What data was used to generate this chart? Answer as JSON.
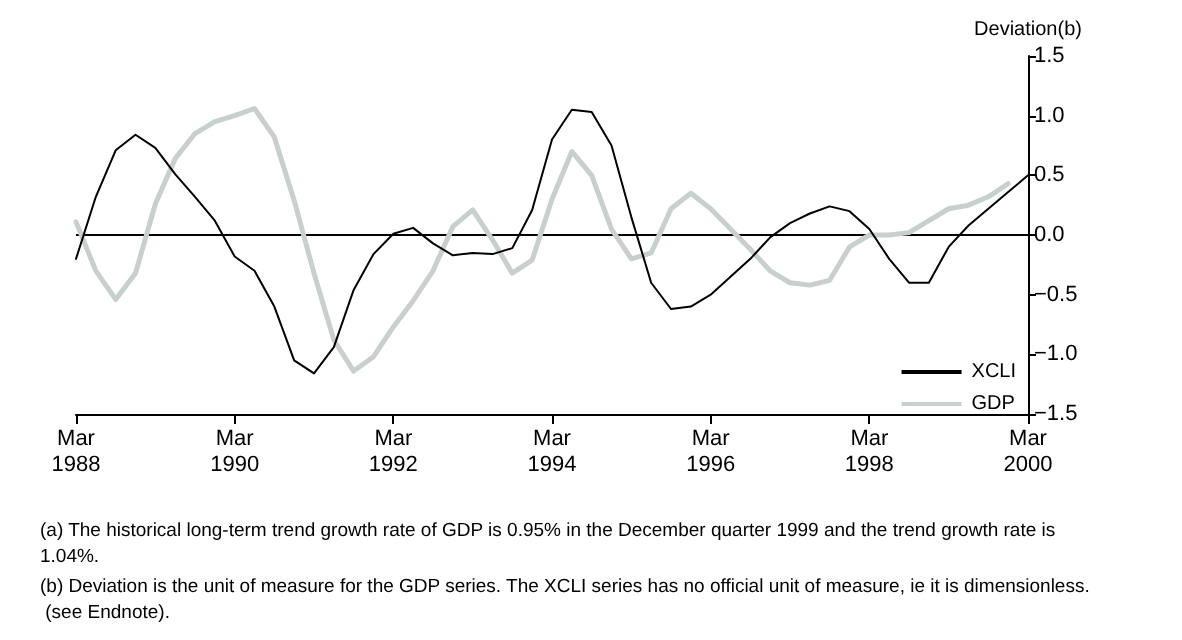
{
  "chart_data": {
    "type": "line",
    "ylabel": "Deviation(b)",
    "categories": [
      "Mar\n1988",
      null,
      null,
      null,
      null,
      null,
      null,
      null,
      "Mar\n1990",
      null,
      null,
      null,
      null,
      null,
      null,
      null,
      "Mar\n1992",
      null,
      null,
      null,
      null,
      null,
      null,
      null,
      "Mar\n1994",
      null,
      null,
      null,
      null,
      null,
      null,
      null,
      "Mar\n1996",
      null,
      null,
      null,
      null,
      null,
      null,
      null,
      "Mar\n1998",
      null,
      null,
      null,
      null,
      null,
      null,
      null,
      "Mar\n2000"
    ],
    "series": [
      {
        "name": "XCLI",
        "color": "#000000",
        "values": [
          -0.2,
          0.32,
          0.71,
          0.84,
          0.73,
          0.51,
          0.32,
          0.12,
          -0.18,
          -0.3,
          -0.6,
          -1.05,
          -1.16,
          -0.94,
          -0.46,
          -0.16,
          0.01,
          0.06,
          -0.07,
          -0.17,
          -0.15,
          -0.16,
          -0.11,
          0.21,
          0.8,
          1.05,
          1.03,
          0.75,
          0.15,
          -0.4,
          -0.62,
          -0.6,
          -0.5,
          -0.35,
          -0.2,
          -0.02,
          0.1,
          0.18,
          0.24,
          0.2,
          0.05,
          -0.2,
          -0.4,
          -0.4,
          -0.1,
          0.08,
          0.22,
          0.36,
          0.5
        ]
      },
      {
        "name": "GDP",
        "color": "#c8d0cc",
        "values": [
          0.11,
          -0.3,
          -0.54,
          -0.32,
          0.26,
          0.64,
          0.85,
          0.95,
          1.0,
          1.06,
          0.82,
          0.29,
          -0.32,
          -0.88,
          -1.14,
          -1.02,
          -0.77,
          -0.55,
          -0.3,
          0.07,
          0.21,
          -0.04,
          -0.32,
          -0.21,
          0.3,
          0.7,
          0.5,
          0.05,
          -0.2,
          -0.15,
          0.22,
          0.35,
          0.22,
          0.05,
          -0.12,
          -0.3,
          -0.4,
          -0.42,
          -0.38,
          -0.1,
          0.0,
          0.0,
          0.02,
          0.12,
          0.22,
          0.25,
          0.32,
          0.43,
          null
        ]
      }
    ],
    "ylim": [
      -1.5,
      1.5
    ],
    "yticks": [
      {
        "value": -1.5,
        "label": "−1.5"
      },
      {
        "value": -1,
        "label": "−1.0"
      },
      {
        "value": -0.5,
        "label": "−0.5"
      },
      {
        "value": 0,
        "label": "0.0"
      },
      {
        "value": 0.5,
        "label": "0.5"
      },
      {
        "value": 1,
        "label": "1.0"
      },
      {
        "value": 1.5,
        "label": "1.5"
      }
    ],
    "ref_lines": [
      {
        "axis": "y",
        "value": 0,
        "color": "#000000"
      }
    ],
    "grid": false,
    "legend": "bottom right",
    "marker": "none",
    "line_style": "solid",
    "annotations": [
      "(a) The historical long-term trend growth rate of GDP is 0.95% in the December quarter 1999 and the trend growth rate is 1.04%.",
      "(b) Deviation is the unit of measure for the GDP series. The XCLI series has no official unit of measure, ie it is dimensionless.  (see Endnote)."
    ]
  }
}
